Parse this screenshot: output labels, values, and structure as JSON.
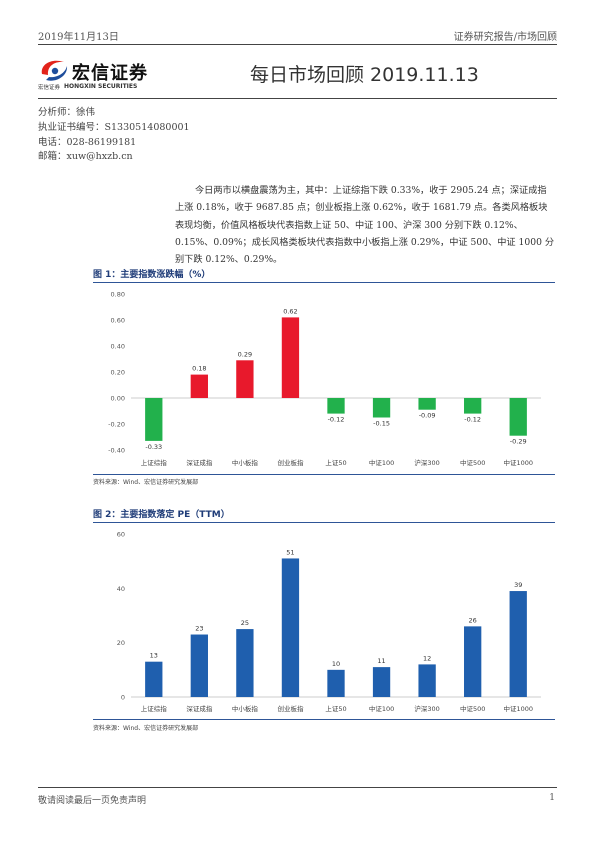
{
  "header": {
    "date": "2019年11月13日",
    "category": "证券研究报告/市场回顾"
  },
  "logo": {
    "name_cn": "宏信证券",
    "small_cn": "宏信证券",
    "name_en": "HONGXIN SECURITIES",
    "colors": {
      "red": "#e2231a",
      "blue": "#1f4e9c"
    }
  },
  "title": "每日市场回顾 2019.11.13",
  "analyst": {
    "name_line": "分析师：徐伟",
    "license_line": "执业证书编号：S1330514080001",
    "phone_line": "电话：028-86199181",
    "email_line": "邮箱：xuw@hxzb.cn"
  },
  "summary": {
    "paragraph": "今日两市以横盘震荡为主，其中：上证综指下跌 0.33%，收于 2905.24 点；深证成指上涨 0.18%，收于 9687.85 点；创业板指上涨 0.62%，收于 1681.79 点。各类风格板块表现均衡，价值风格板块代表指数上证 50、中证 100、沪深 300 分别下跌 0.12%、0.15%、0.09%；成长风格类板块代表指数中小板指上涨 0.29%，中证 500、中证 1000 分别下跌 0.12%、0.29%。"
  },
  "figures": [
    {
      "title": "图 1：主要指数涨跌幅（%）",
      "source": "资料来源：Wind、宏信证券研究发展部"
    },
    {
      "title": "图 2：主要指数落定 PE（TTM）",
      "source": "资料来源：Wind、宏信证券研究发展部"
    }
  ],
  "chart_data": [
    {
      "type": "bar",
      "categories": [
        "上证综指",
        "深证成指",
        "中小板指",
        "创业板指",
        "上证50",
        "中证100",
        "沪深300",
        "中证500",
        "中证1000"
      ],
      "values": [
        -0.33,
        0.18,
        0.29,
        0.62,
        -0.12,
        -0.15,
        -0.09,
        -0.12,
        -0.29
      ],
      "data_labels": [
        "-0.33",
        "0.18",
        "0.29",
        "0.62",
        "-0.12",
        "-0.15",
        "-0.09",
        "-0.12",
        "-0.29"
      ],
      "ylim": [
        -0.4,
        0.8
      ],
      "yticks": [
        "0.80",
        "0.60",
        "0.40",
        "0.20",
        "0.00",
        "-0.20",
        "-0.40"
      ],
      "ytick_values": [
        0.8,
        0.6,
        0.4,
        0.2,
        0.0,
        -0.2,
        -0.4
      ],
      "colors": {
        "positive": "#e8192c",
        "negative": "#22b14c"
      },
      "grid": false
    },
    {
      "type": "bar",
      "categories": [
        "上证综指",
        "深证成指",
        "中小板指",
        "创业板指",
        "上证50",
        "中证100",
        "沪深300",
        "中证500",
        "中证1000"
      ],
      "values": [
        13,
        23,
        25,
        51,
        10,
        11,
        12,
        26,
        39
      ],
      "data_labels": [
        "13",
        "23",
        "25",
        "51",
        "10",
        "11",
        "12",
        "26",
        "39"
      ],
      "ylim": [
        0,
        60
      ],
      "yticks": [
        "60",
        "40",
        "20",
        "0"
      ],
      "ytick_values": [
        60,
        40,
        20,
        0
      ],
      "colors": {
        "bar": "#1f5fae"
      },
      "grid": false
    }
  ],
  "footer": {
    "disclaimer": "敬请阅读最后一页免责声明",
    "page_number": "1"
  }
}
